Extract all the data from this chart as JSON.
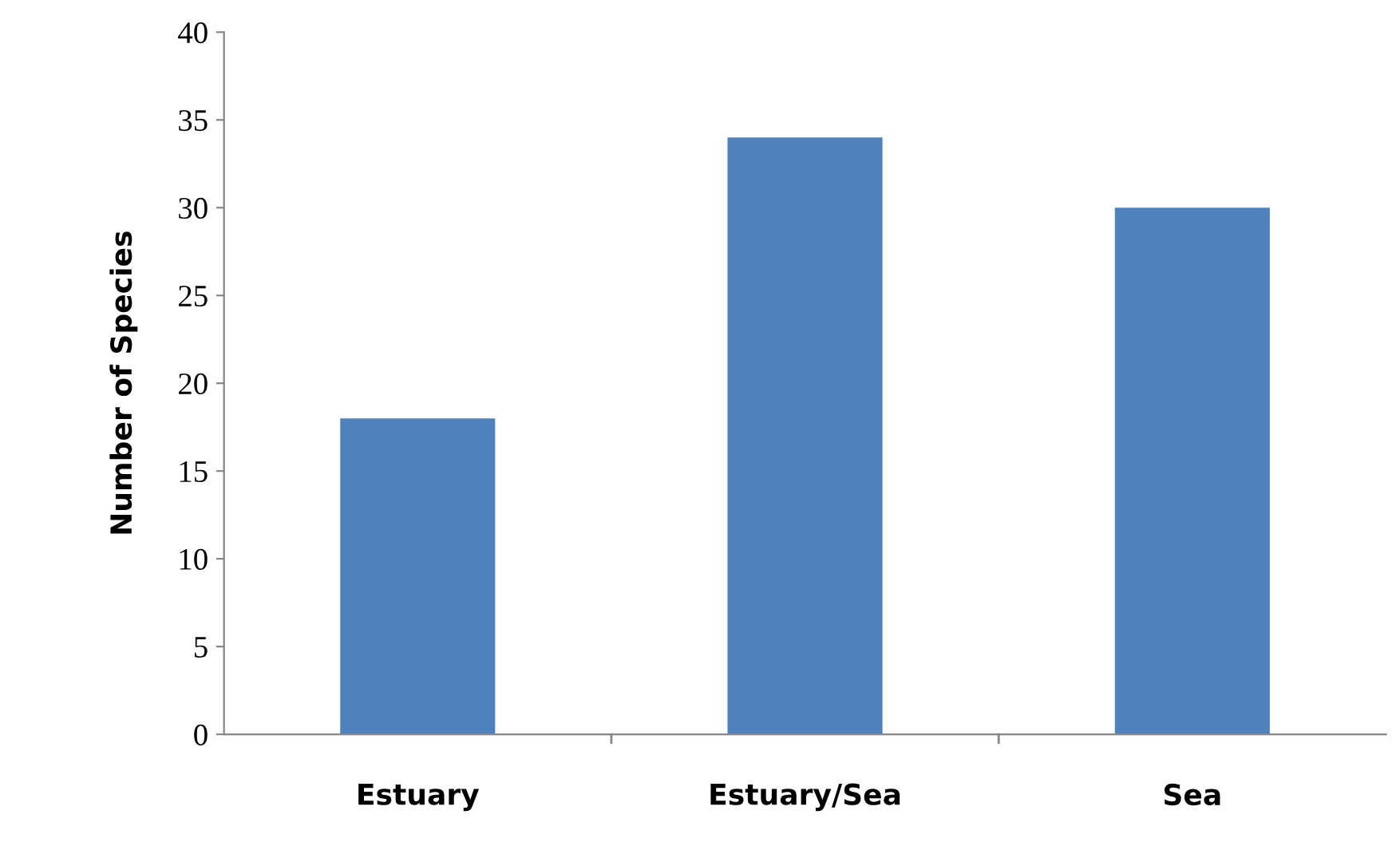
{
  "chart_data": {
    "type": "bar",
    "ylabel": "Number of Species",
    "categories": [
      "Estuary",
      "Estuary/Sea",
      "Sea"
    ],
    "values": [
      18,
      34,
      30
    ],
    "color": "#4f81bd",
    "ylim": [
      0,
      40
    ],
    "yticks": [
      0,
      5,
      10,
      15,
      20,
      25,
      30,
      35,
      40
    ],
    "grid": false,
    "legend": false
  }
}
